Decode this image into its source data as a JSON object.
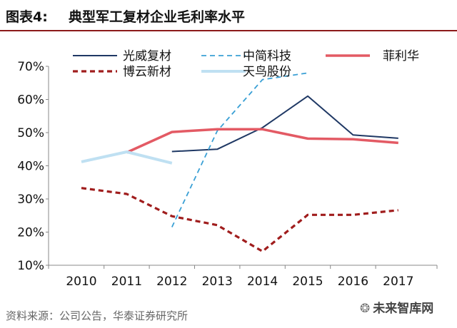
{
  "header": {
    "figure_label": "图表4:",
    "title": "典型军工复材企业毛利率水平"
  },
  "footer": {
    "source": "资料来源：公司公告，华泰证券研究所",
    "watermark": "未来智库网",
    "watermark_icon": "wechat-icon"
  },
  "chart_data": {
    "type": "line",
    "categories": [
      "2010",
      "2011",
      "2012",
      "2013",
      "2014",
      "2015",
      "2016",
      "2017"
    ],
    "y_ticks": [
      "10%",
      "20%",
      "30%",
      "40%",
      "50%",
      "60%",
      "70%"
    ],
    "ylim": [
      10,
      70
    ],
    "grid": false,
    "legend_position": "top",
    "series": [
      {
        "name": "光威复材",
        "color": "#1f3864",
        "dash": "solid",
        "values": [
          null,
          null,
          44.3,
          45,
          51.5,
          61,
          49.3,
          48.3
        ]
      },
      {
        "name": "中简科技",
        "color": "#3aa0d5",
        "dash": "dashed",
        "values": [
          null,
          null,
          21.5,
          50.5,
          66,
          68,
          null,
          null
        ]
      },
      {
        "name": "菲利华",
        "color": "#e35a64",
        "dash": "solid",
        "values": [
          null,
          44,
          50.2,
          51,
          51,
          48.2,
          48,
          46.9
        ]
      },
      {
        "name": "博云新材",
        "color": "#a01d1d",
        "dash": "dashed",
        "values": [
          33.3,
          31.5,
          24.8,
          22.1,
          14.2,
          25.2,
          25.2,
          26.6
        ]
      },
      {
        "name": "天鸟股份",
        "color": "#bfe0f2",
        "dash": "solid",
        "values": [
          41.2,
          44.2,
          40.8,
          null,
          null,
          null,
          null,
          null
        ]
      }
    ]
  }
}
